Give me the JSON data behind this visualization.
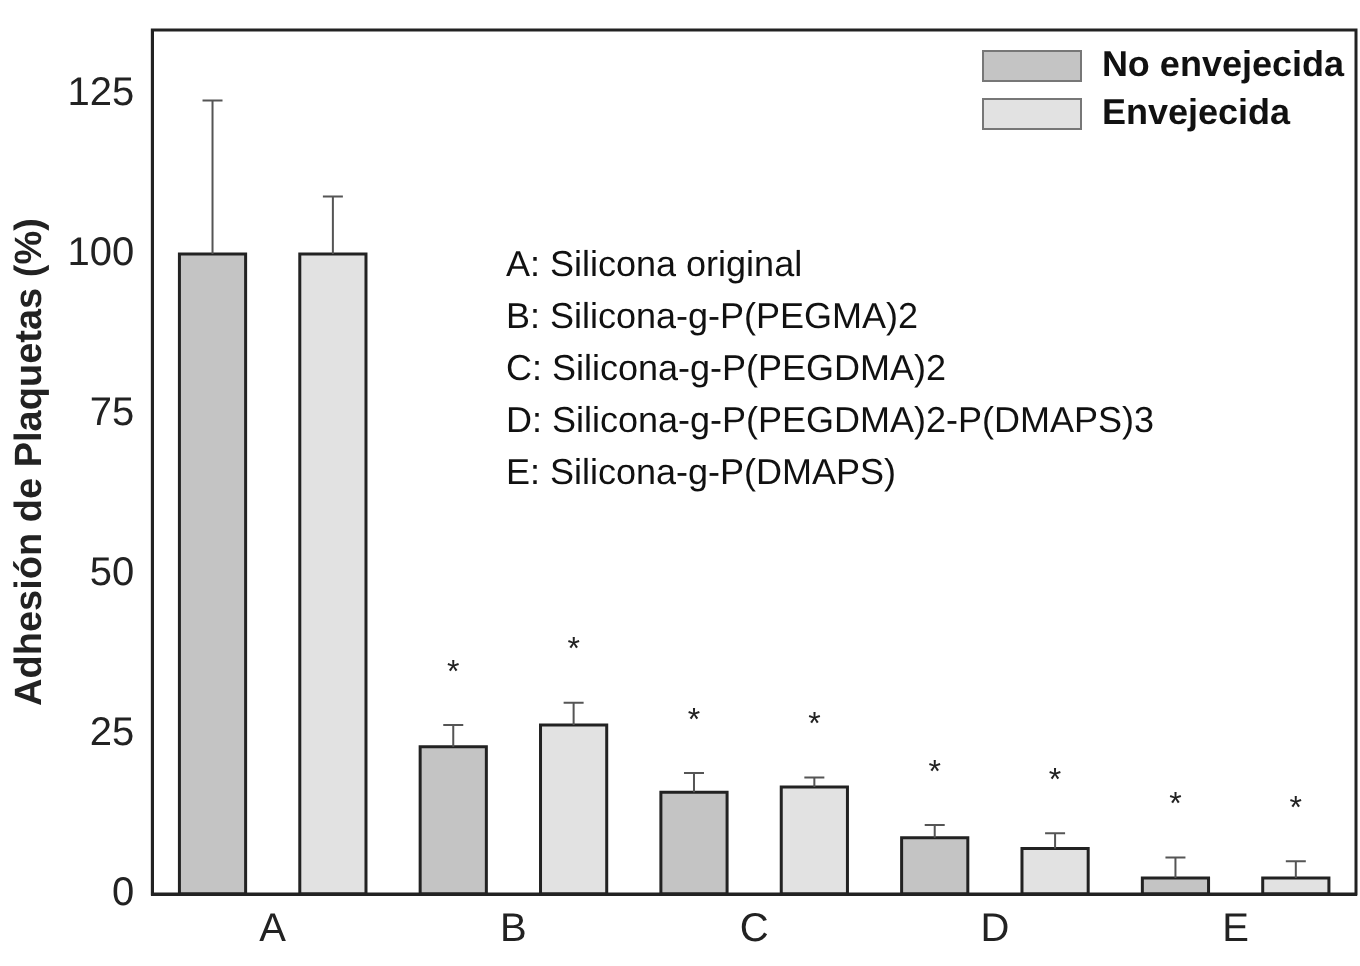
{
  "chart_data": {
    "type": "bar",
    "ylabel": "Adhesión de Plaquetas (%)",
    "categories": [
      "A",
      "B",
      "C",
      "D",
      "E"
    ],
    "series": [
      {
        "name": "No envejecida",
        "color": "#c4c4c4",
        "values": [
          100,
          23,
          15.9,
          8.8,
          2.5
        ],
        "value_labels": [
          null,
          "*",
          "*",
          "*",
          "*"
        ],
        "errors": [
          [
            100,
            124
          ],
          [
            23,
            26.4
          ],
          [
            15.9,
            18.9
          ],
          [
            8.8,
            10.8
          ],
          [
            2.5,
            5.7
          ]
        ]
      },
      {
        "name": "Envejecida",
        "color": "#e2e2e2",
        "values": [
          100,
          26.4,
          16.7,
          7.1,
          2.5
        ],
        "value_labels": [
          null,
          "*",
          "*",
          "*",
          "*"
        ],
        "errors": [
          [
            100,
            109
          ],
          [
            26.4,
            29.9
          ],
          [
            16.7,
            18.2
          ],
          [
            7.1,
            9.5
          ],
          [
            2.5,
            5.1
          ]
        ]
      }
    ],
    "ylim": [
      0,
      135
    ],
    "yticks": [
      0,
      25,
      50,
      75,
      100,
      125
    ],
    "grid": false,
    "legend": "top right",
    "annotations": [
      "A: Silicona original",
      "B: Silicona-g-P(PEGMA)2",
      "C: Silicona-g-P(PEGDMA)2",
      "D: Silicona-g-P(PEGDMA)2-P(DMAPS)3",
      "E: Silicona-g-P(DMAPS)"
    ]
  }
}
